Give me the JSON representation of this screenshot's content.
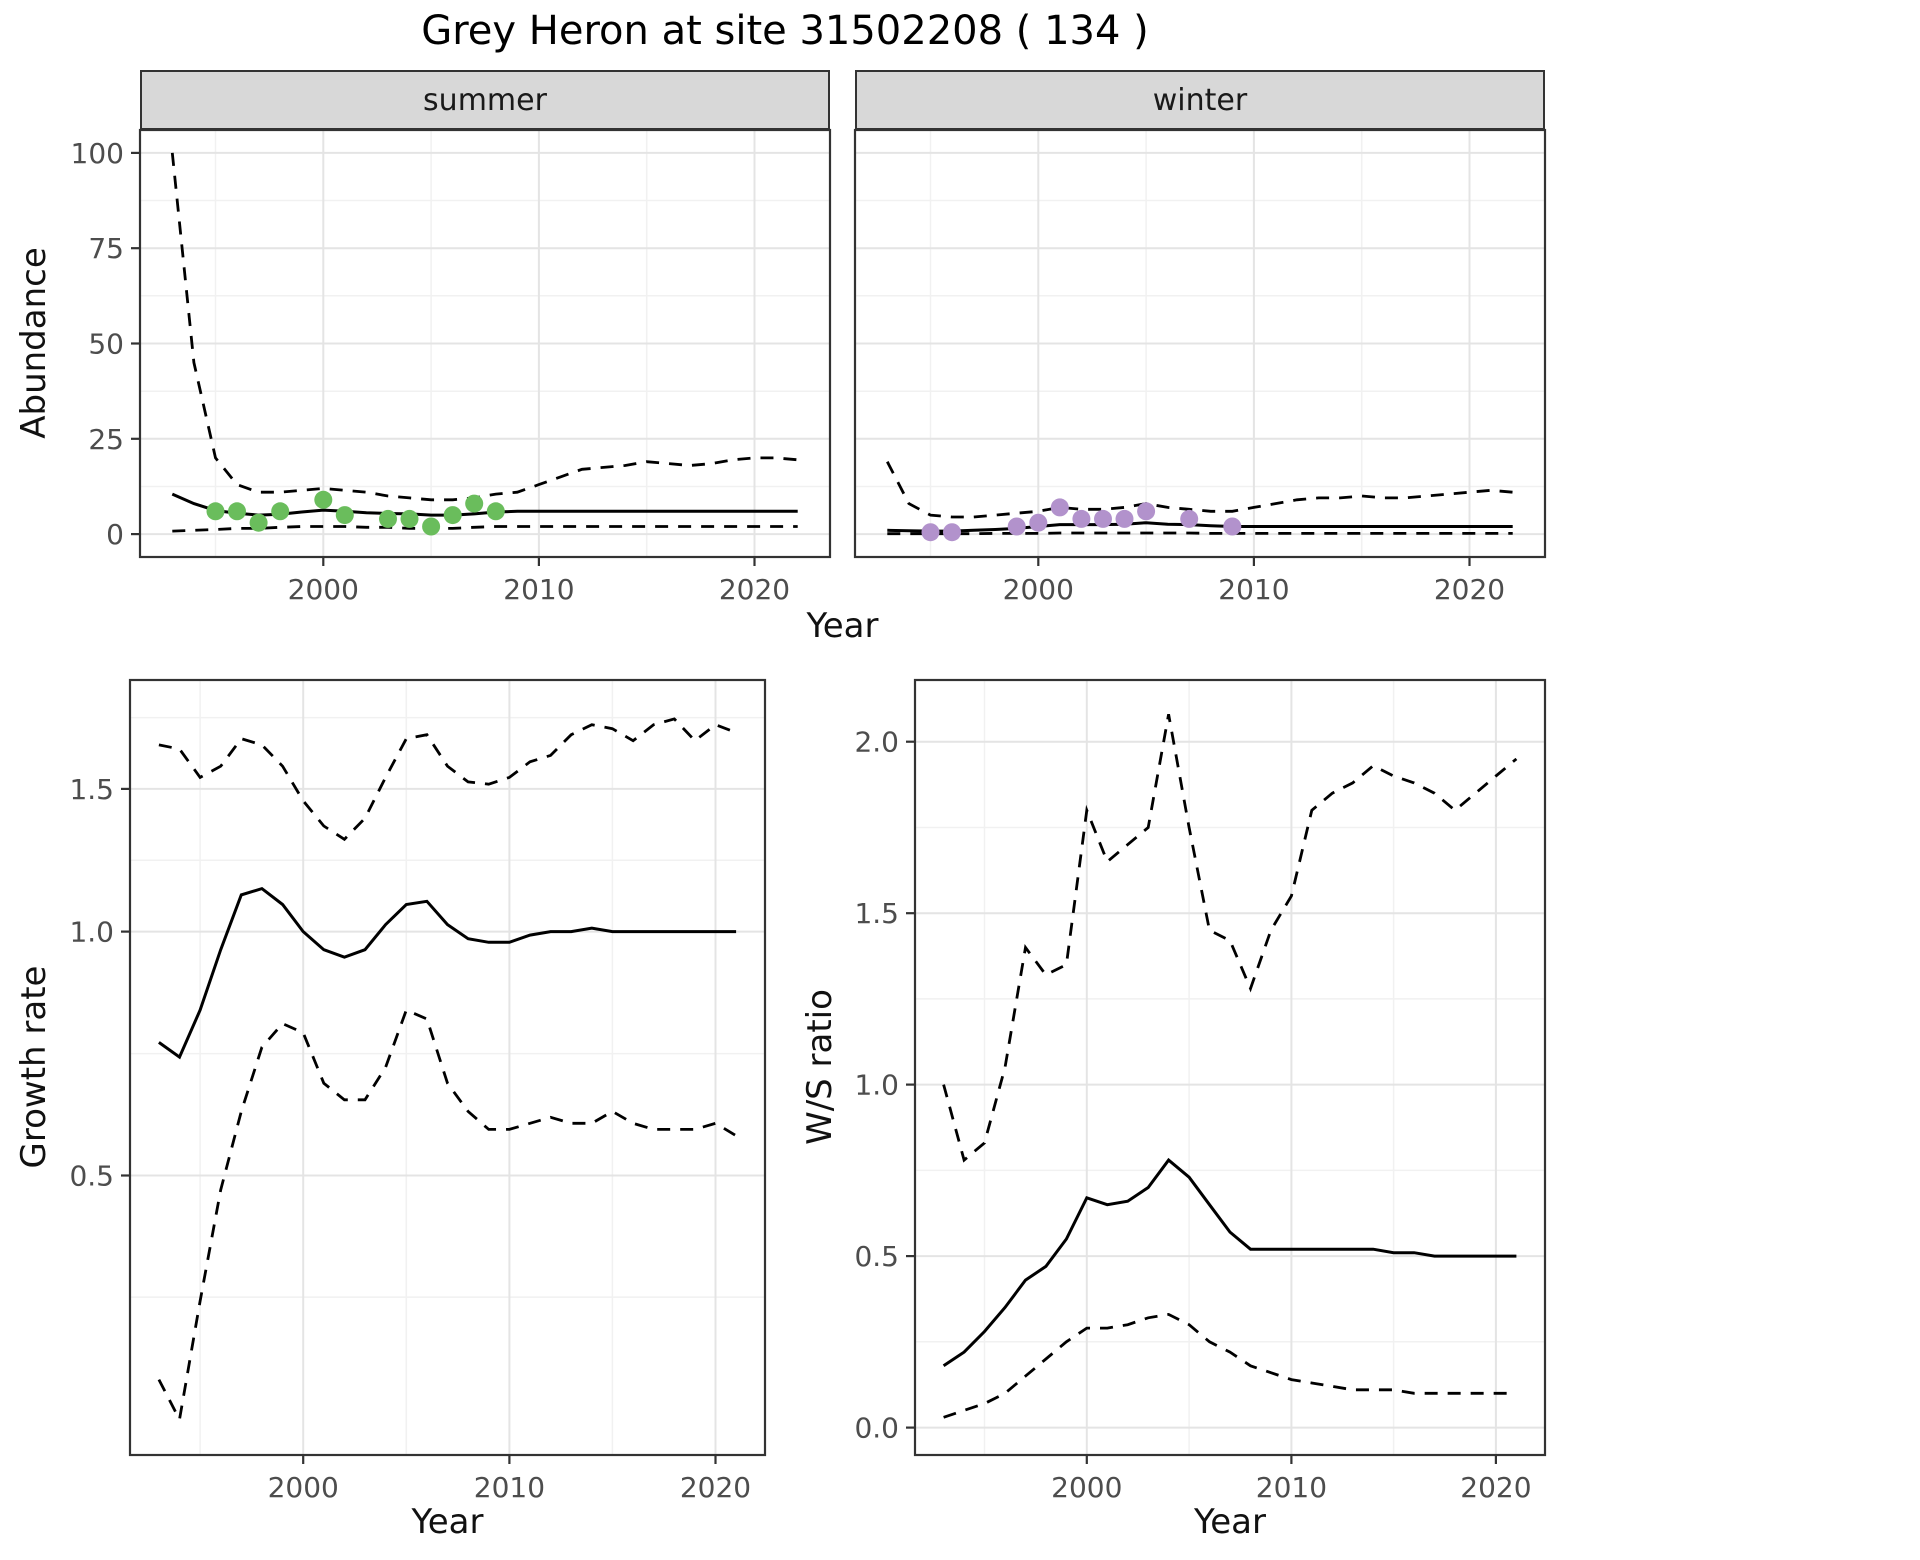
{
  "title": "Grey Heron at site 31502208 ( 134 )",
  "chart_data": [
    {
      "id": "abundance",
      "type": "line",
      "xlabel": "Year",
      "ylabel": "Abundance",
      "yscale": "linear",
      "xlim": [
        1991.5,
        2023.5
      ],
      "ylim": [
        -6,
        106
      ],
      "xticks": [
        2000,
        2010,
        2020
      ],
      "xtick_labels": [
        "2000",
        "2010",
        "2020"
      ],
      "yticks": [
        0,
        25,
        50,
        75,
        100
      ],
      "ytick_labels": [
        "0",
        "25",
        "50",
        "75",
        "100"
      ],
      "xminor": [
        1995,
        2005,
        2015
      ],
      "yminor": [
        12.5,
        37.5,
        62.5,
        87.5
      ],
      "x": [
        1993,
        1994,
        1995,
        1996,
        1997,
        1998,
        1999,
        2000,
        2001,
        2002,
        2003,
        2004,
        2005,
        2006,
        2007,
        2008,
        2009,
        2010,
        2011,
        2012,
        2013,
        2014,
        2015,
        2016,
        2017,
        2018,
        2019,
        2020,
        2021,
        2022
      ],
      "facets": [
        {
          "label": "summer",
          "point_color": "#6abd5c",
          "fit": [
            10.5,
            8.0,
            6.2,
            5.5,
            5.0,
            5.2,
            5.8,
            6.3,
            6.0,
            5.6,
            5.4,
            5.3,
            5.0,
            5.0,
            5.3,
            5.8,
            6.0,
            6.0,
            6.0,
            6.0,
            6.0,
            6.0,
            6.0,
            6.0,
            6.0,
            6.0,
            6.0,
            6.0,
            6.0,
            6.0
          ],
          "upper": [
            100,
            45,
            20,
            13,
            11,
            11,
            11.5,
            12,
            11.5,
            11,
            10,
            9.5,
            9,
            9,
            9.5,
            10.5,
            11,
            13,
            15,
            17,
            17.5,
            18,
            19,
            18.5,
            18,
            18.5,
            19.5,
            20,
            20,
            19.5
          ],
          "lower": [
            0.8,
            1.0,
            1.2,
            1.5,
            1.5,
            1.8,
            2.0,
            2.0,
            2.0,
            1.8,
            1.8,
            1.5,
            1.5,
            1.5,
            1.8,
            2.0,
            2.0,
            2.0,
            2.0,
            2.0,
            2.0,
            2.0,
            2.0,
            2.0,
            2.0,
            2.0,
            2.0,
            2.0,
            2.0,
            2.0
          ],
          "obs_x": [
            1995,
            1996,
            1997,
            1998,
            2000,
            2001,
            2003,
            2004,
            2005,
            2006,
            2007,
            2008
          ],
          "obs_y": [
            6,
            6,
            3,
            6,
            9,
            5,
            4,
            4,
            2,
            5,
            8,
            6
          ]
        },
        {
          "label": "winter",
          "point_color": "#b292cc",
          "fit": [
            1.0,
            0.9,
            0.8,
            0.8,
            1.0,
            1.2,
            1.5,
            2.0,
            2.5,
            2.5,
            2.5,
            2.6,
            3.0,
            2.6,
            2.5,
            2.2,
            2.0,
            2.0,
            2.0,
            2.0,
            2.0,
            2.0,
            2.0,
            2.0,
            2.0,
            2.0,
            2.0,
            2.0,
            2.0,
            2.0
          ],
          "upper": [
            19,
            8,
            5,
            4.5,
            4.5,
            5,
            5.5,
            6,
            7,
            6.5,
            6.5,
            7,
            8,
            7,
            6.5,
            6,
            6,
            7,
            8,
            9,
            9.5,
            9.5,
            10,
            9.5,
            9.5,
            10,
            10.5,
            11,
            11.5,
            11
          ],
          "lower": [
            0.1,
            0.1,
            0.1,
            0.1,
            0.1,
            0.2,
            0.2,
            0.2,
            0.3,
            0.3,
            0.3,
            0.3,
            0.3,
            0.3,
            0.3,
            0.2,
            0.2,
            0.2,
            0.2,
            0.2,
            0.2,
            0.2,
            0.2,
            0.2,
            0.2,
            0.2,
            0.2,
            0.2,
            0.2,
            0.2
          ],
          "obs_x": [
            1995,
            1996,
            1999,
            2000,
            2001,
            2002,
            2003,
            2004,
            2005,
            2007,
            2009
          ],
          "obs_y": [
            0.5,
            0.5,
            2,
            3,
            7,
            4,
            4,
            4,
            6,
            4,
            2
          ]
        }
      ]
    },
    {
      "id": "growth",
      "type": "line",
      "xlabel": "Year",
      "ylabel": "Growth rate",
      "yscale": "log",
      "xlim": [
        1991.6,
        2022.4
      ],
      "ylim": [
        0.226,
        2.044
      ],
      "xticks": [
        2000,
        2010,
        2020
      ],
      "xtick_labels": [
        "2000",
        "2010",
        "2020"
      ],
      "yticks": [
        0.5,
        1.0,
        1.5
      ],
      "ytick_labels": [
        "0.5",
        "1.0",
        "1.5"
      ],
      "xminor": [
        1995,
        2005,
        2015
      ],
      "yminor": [
        0.354,
        0.707,
        1.225,
        1.837
      ],
      "x": [
        1993,
        1994,
        1995,
        1996,
        1997,
        1998,
        1999,
        2000,
        2001,
        2002,
        2003,
        2004,
        2005,
        2006,
        2007,
        2008,
        2009,
        2010,
        2011,
        2012,
        2013,
        2014,
        2015,
        2016,
        2017,
        2018,
        2019,
        2020,
        2021
      ],
      "fit": [
        0.73,
        0.7,
        0.8,
        0.95,
        1.11,
        1.13,
        1.08,
        1.0,
        0.95,
        0.93,
        0.95,
        1.02,
        1.08,
        1.09,
        1.02,
        0.98,
        0.97,
        0.97,
        0.99,
        1.0,
        1.0,
        1.01,
        1.0,
        1.0,
        1.0,
        1.0,
        1.0,
        1.0,
        1.0
      ],
      "upper": [
        1.7,
        1.68,
        1.55,
        1.6,
        1.73,
        1.7,
        1.6,
        1.45,
        1.35,
        1.3,
        1.38,
        1.55,
        1.73,
        1.75,
        1.6,
        1.53,
        1.52,
        1.55,
        1.62,
        1.65,
        1.75,
        1.8,
        1.78,
        1.72,
        1.8,
        1.83,
        1.72,
        1.8,
        1.76
      ],
      "lower": [
        0.28,
        0.25,
        0.35,
        0.48,
        0.6,
        0.72,
        0.77,
        0.75,
        0.65,
        0.62,
        0.62,
        0.68,
        0.8,
        0.78,
        0.65,
        0.6,
        0.57,
        0.57,
        0.58,
        0.59,
        0.58,
        0.58,
        0.6,
        0.58,
        0.57,
        0.57,
        0.57,
        0.58,
        0.56
      ]
    },
    {
      "id": "wsratio",
      "type": "line",
      "xlabel": "Year",
      "ylabel": "W/S ratio",
      "yscale": "linear",
      "xlim": [
        1991.6,
        2022.4
      ],
      "ylim": [
        -0.08,
        2.18
      ],
      "xticks": [
        2000,
        2010,
        2020
      ],
      "xtick_labels": [
        "2000",
        "2010",
        "2020"
      ],
      "yticks": [
        0,
        0.5,
        1.0,
        1.5,
        2.0
      ],
      "ytick_labels": [
        "0.0",
        "0.5",
        "1.0",
        "1.5",
        "2.0"
      ],
      "xminor": [
        1995,
        2005,
        2015
      ],
      "yminor": [
        0.25,
        0.75,
        1.25,
        1.75
      ],
      "x": [
        1993,
        1994,
        1995,
        1996,
        1997,
        1998,
        1999,
        2000,
        2001,
        2002,
        2003,
        2004,
        2005,
        2006,
        2007,
        2008,
        2009,
        2010,
        2011,
        2012,
        2013,
        2014,
        2015,
        2016,
        2017,
        2018,
        2019,
        2020,
        2021
      ],
      "fit": [
        0.18,
        0.22,
        0.28,
        0.35,
        0.43,
        0.47,
        0.55,
        0.67,
        0.65,
        0.66,
        0.7,
        0.78,
        0.73,
        0.65,
        0.57,
        0.52,
        0.52,
        0.52,
        0.52,
        0.52,
        0.52,
        0.52,
        0.51,
        0.51,
        0.5,
        0.5,
        0.5,
        0.5,
        0.5
      ],
      "upper": [
        1.0,
        0.78,
        0.83,
        1.05,
        1.4,
        1.32,
        1.35,
        1.8,
        1.65,
        1.7,
        1.75,
        2.08,
        1.75,
        1.45,
        1.42,
        1.28,
        1.45,
        1.55,
        1.8,
        1.85,
        1.88,
        1.93,
        1.9,
        1.88,
        1.85,
        1.8,
        1.85,
        1.9,
        1.95
      ],
      "lower": [
        0.03,
        0.05,
        0.07,
        0.1,
        0.15,
        0.2,
        0.25,
        0.29,
        0.29,
        0.3,
        0.32,
        0.33,
        0.3,
        0.25,
        0.22,
        0.18,
        0.16,
        0.14,
        0.13,
        0.12,
        0.11,
        0.11,
        0.11,
        0.1,
        0.1,
        0.1,
        0.1,
        0.1,
        0.1
      ]
    }
  ]
}
